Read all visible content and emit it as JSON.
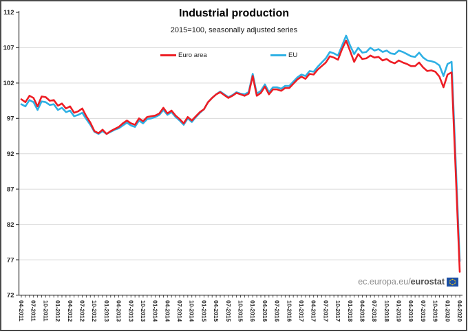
{
  "header": {
    "title": "Industrial production",
    "subtitle": "2015=100, seasonally adjusted series"
  },
  "watermark": {
    "prefix": "ec.europa.eu/",
    "brand": "eurostat",
    "flag_colors": {
      "background": "#1b4fa5",
      "stars": "#ffd617"
    }
  },
  "chart_data": {
    "type": "line",
    "title": "Industrial production",
    "subtitle": "2015=100, seasonally adjusted series",
    "grid": "horizontal",
    "legend_position": "top-inside",
    "colors": {
      "grid": "#d9d9d9",
      "axis": "#404040",
      "tick_text": "#262626"
    },
    "y_axis": {
      "min": 72,
      "max": 112,
      "tick_step": 5,
      "ticks": [
        72,
        77,
        82,
        87,
        92,
        97,
        102,
        107,
        112
      ]
    },
    "x_axis": {
      "point_count": 109,
      "months_per_label": 3,
      "first_month": "04-2011",
      "last_month": "04-2020",
      "tick_labels": [
        "04-2011",
        "07-2011",
        "10-2011",
        "01-2012",
        "04-2012",
        "07-2012",
        "10-2012",
        "01-2013",
        "04-2013",
        "07-2013",
        "10-2013",
        "01-2014",
        "04-2014",
        "07-2014",
        "10-2014",
        "01-2015",
        "04-2015",
        "07-2015",
        "10-2015",
        "01-2016",
        "04-2016",
        "07-2016",
        "10-2016",
        "01-2017",
        "04-2017",
        "07-2017",
        "10-2017",
        "01-2018",
        "04-2018",
        "07-2018",
        "10-2018",
        "01-2019",
        "04-2019",
        "07-2019",
        "10-2019",
        "01-2020",
        "04-2020"
      ]
    },
    "series": [
      {
        "name": "Euro area",
        "color": "#ed1d24",
        "values": [
          99.7,
          99.3,
          100.2,
          99.9,
          98.7,
          100.1,
          100.0,
          99.5,
          99.6,
          98.8,
          99.1,
          98.4,
          98.7,
          97.8,
          98.0,
          98.4,
          97.3,
          96.4,
          95.2,
          94.9,
          95.4,
          94.8,
          95.2,
          95.5,
          95.8,
          96.3,
          96.7,
          96.3,
          96.1,
          97.0,
          96.6,
          97.2,
          97.3,
          97.4,
          97.7,
          98.5,
          97.7,
          98.1,
          97.4,
          96.9,
          96.3,
          97.2,
          96.7,
          97.3,
          97.9,
          98.3,
          99.3,
          99.9,
          100.4,
          100.7,
          100.3,
          99.9,
          100.2,
          100.6,
          100.4,
          100.2,
          100.5,
          103.0,
          100.2,
          100.6,
          101.5,
          100.4,
          101.1,
          101.1,
          100.9,
          101.3,
          101.3,
          101.9,
          102.5,
          102.9,
          102.6,
          103.3,
          103.2,
          103.9,
          104.4,
          104.9,
          105.8,
          105.6,
          105.3,
          106.8,
          108.0,
          106.5,
          105.0,
          106.1,
          105.4,
          105.5,
          105.9,
          105.6,
          105.7,
          105.2,
          105.4,
          105.0,
          104.8,
          105.2,
          104.9,
          104.7,
          104.4,
          104.4,
          104.9,
          104.2,
          103.7,
          103.8,
          103.6,
          102.9,
          101.4,
          103.2,
          103.5,
          89.5,
          75.3
        ]
      },
      {
        "name": "EU",
        "color": "#2eb0e4",
        "values": [
          99.0,
          98.7,
          99.6,
          99.3,
          98.2,
          99.4,
          99.3,
          98.9,
          99.0,
          98.2,
          98.5,
          97.9,
          98.1,
          97.3,
          97.5,
          97.8,
          96.9,
          96.1,
          95.1,
          94.8,
          95.2,
          94.8,
          95.1,
          95.4,
          95.6,
          96.0,
          96.4,
          96.0,
          95.8,
          96.7,
          96.3,
          96.9,
          97.0,
          97.2,
          97.5,
          98.2,
          97.5,
          97.9,
          97.2,
          96.7,
          96.1,
          97.0,
          96.5,
          97.2,
          97.8,
          98.3,
          99.3,
          99.9,
          100.4,
          100.8,
          100.4,
          100.0,
          100.3,
          100.7,
          100.5,
          100.4,
          100.7,
          103.3,
          100.5,
          100.9,
          101.8,
          100.7,
          101.4,
          101.4,
          101.2,
          101.6,
          101.6,
          102.2,
          102.8,
          103.2,
          103.0,
          103.7,
          103.6,
          104.3,
          104.9,
          105.5,
          106.4,
          106.2,
          105.9,
          107.3,
          108.7,
          107.3,
          106.1,
          107.0,
          106.3,
          106.4,
          107.0,
          106.6,
          106.8,
          106.4,
          106.6,
          106.2,
          106.1,
          106.6,
          106.4,
          106.1,
          105.8,
          105.7,
          106.3,
          105.6,
          105.2,
          105.1,
          104.9,
          104.5,
          103.0,
          104.7,
          105.0,
          91.0,
          76.8
        ]
      }
    ]
  }
}
